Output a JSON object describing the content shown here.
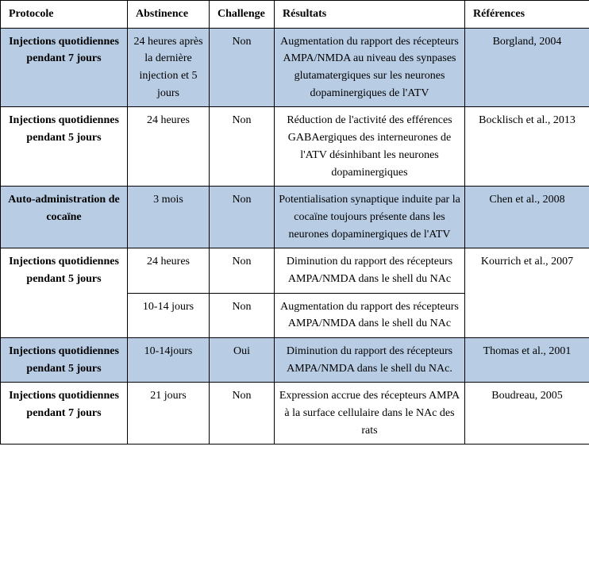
{
  "colors": {
    "blue_row": "#b8cce4",
    "white_row": "#ffffff",
    "border": "#000000",
    "text": "#000000"
  },
  "font": {
    "family": "Times New Roman",
    "size_pt": 11
  },
  "columns": {
    "protocole": "Protocole",
    "abstinence": "Abstinence",
    "challenge": "Challenge",
    "resultats": "Résultats",
    "references": "Références"
  },
  "rows": {
    "r1": {
      "protocole": "Injections quotidiennes pendant 7 jours",
      "abstinence": "24 heures après la dernière injection et 5 jours",
      "challenge": "Non",
      "resultats": "Augmentation du rapport  des récepteurs AMPA/NMDA au niveau des synpases glutamatergiques sur les neurones dopaminergiques de l'ATV",
      "references": "Borgland, 2004"
    },
    "r2": {
      "protocole": "Injections quotidiennes pendant 5 jours",
      "abstinence": "24 heures",
      "challenge": "Non",
      "resultats": "Réduction de l'activité des efférences GABAergiques des interneurones de l'ATV désinhibant les neurones dopaminergiques",
      "references": "Bocklisch et al., 2013"
    },
    "r3": {
      "protocole": "Auto-administration de cocaïne",
      "abstinence": "3 mois",
      "challenge": "Non",
      "resultats": "Potentialisation synaptique induite par la cocaïne toujours présente dans les neurones dopaminergiques de l'ATV",
      "references": "Chen et al., 2008"
    },
    "r4a": {
      "protocole": "Injections quotidiennes pendant 5 jours",
      "abstinence": "24 heures",
      "challenge": "Non",
      "resultats": "Diminution du rapport  des récepteurs AMPA/NMDA dans le shell du NAc",
      "references": "Kourrich et al., 2007"
    },
    "r4b": {
      "abstinence": "10-14 jours",
      "challenge": "Non",
      "resultats": "Augmentation du rapport des récepteurs AMPA/NMDA dans le shell du NAc"
    },
    "r5": {
      "protocole": "Injections quotidiennes pendant 5 jours",
      "abstinence": "10-14jours",
      "challenge": "Oui",
      "resultats": "Diminution du rapport  des récepteurs AMPA/NMDA dans le shell du NAc.",
      "references": "Thomas et al., 2001"
    },
    "r6": {
      "protocole": "Injections quotidiennes pendant 7 jours",
      "abstinence": "21 jours",
      "challenge": "Non",
      "resultats": "Expression accrue des récepteurs AMPA à la surface cellulaire dans le NAc des rats",
      "references": "Boudreau, 2005"
    }
  }
}
